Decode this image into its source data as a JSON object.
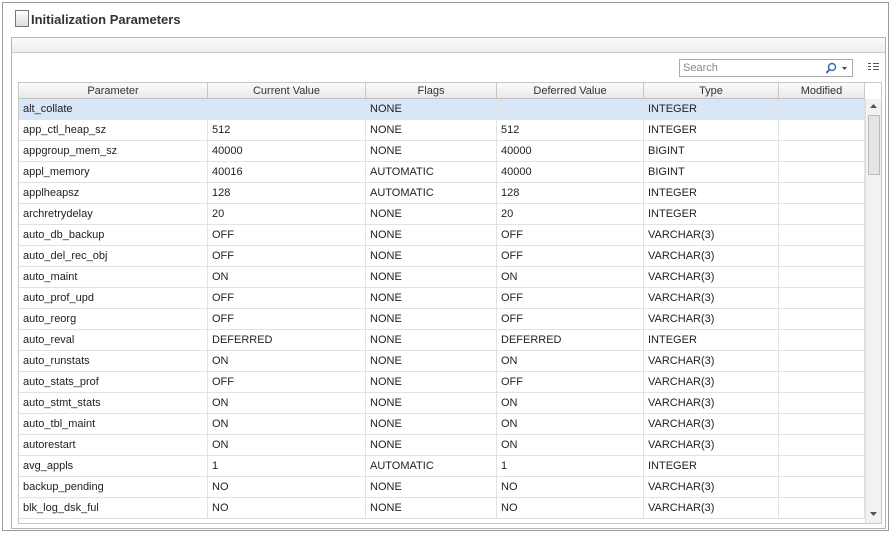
{
  "header": {
    "title": "Initialization Parameters"
  },
  "search": {
    "placeholder": "Search"
  },
  "table": {
    "columns": [
      "Parameter",
      "Current Value",
      "Flags",
      "Deferred Value",
      "Type",
      "Modified"
    ],
    "rows": [
      [
        "alt_collate",
        null,
        "NONE",
        null,
        "INTEGER",
        null
      ],
      [
        "app_ctl_heap_sz",
        "512",
        "NONE",
        "512",
        "INTEGER",
        null
      ],
      [
        "appgroup_mem_sz",
        "40000",
        "NONE",
        "40000",
        "BIGINT",
        null
      ],
      [
        "appl_memory",
        "40016",
        "AUTOMATIC",
        "40000",
        "BIGINT",
        null
      ],
      [
        "applheapsz",
        "128",
        "AUTOMATIC",
        "128",
        "INTEGER",
        null
      ],
      [
        "archretrydelay",
        "20",
        "NONE",
        "20",
        "INTEGER",
        null
      ],
      [
        "auto_db_backup",
        "OFF",
        "NONE",
        "OFF",
        "VARCHAR(3)",
        null
      ],
      [
        "auto_del_rec_obj",
        "OFF",
        "NONE",
        "OFF",
        "VARCHAR(3)",
        null
      ],
      [
        "auto_maint",
        "ON",
        "NONE",
        "ON",
        "VARCHAR(3)",
        null
      ],
      [
        "auto_prof_upd",
        "OFF",
        "NONE",
        "OFF",
        "VARCHAR(3)",
        null
      ],
      [
        "auto_reorg",
        "OFF",
        "NONE",
        "OFF",
        "VARCHAR(3)",
        null
      ],
      [
        "auto_reval",
        "DEFERRED",
        "NONE",
        "DEFERRED",
        "INTEGER",
        null
      ],
      [
        "auto_runstats",
        "ON",
        "NONE",
        "ON",
        "VARCHAR(3)",
        null
      ],
      [
        "auto_stats_prof",
        "OFF",
        "NONE",
        "OFF",
        "VARCHAR(3)",
        null
      ],
      [
        "auto_stmt_stats",
        "ON",
        "NONE",
        "ON",
        "VARCHAR(3)",
        null
      ],
      [
        "auto_tbl_maint",
        "ON",
        "NONE",
        "ON",
        "VARCHAR(3)",
        null
      ],
      [
        "autorestart",
        "ON",
        "NONE",
        "ON",
        "VARCHAR(3)",
        null
      ],
      [
        "avg_appls",
        "1",
        "AUTOMATIC",
        "1",
        "INTEGER",
        null
      ],
      [
        "backup_pending",
        "NO",
        "NONE",
        "NO",
        "VARCHAR(3)",
        null
      ],
      [
        "blk_log_dsk_ful",
        "NO",
        "NONE",
        "NO",
        "VARCHAR(3)",
        null
      ]
    ]
  }
}
